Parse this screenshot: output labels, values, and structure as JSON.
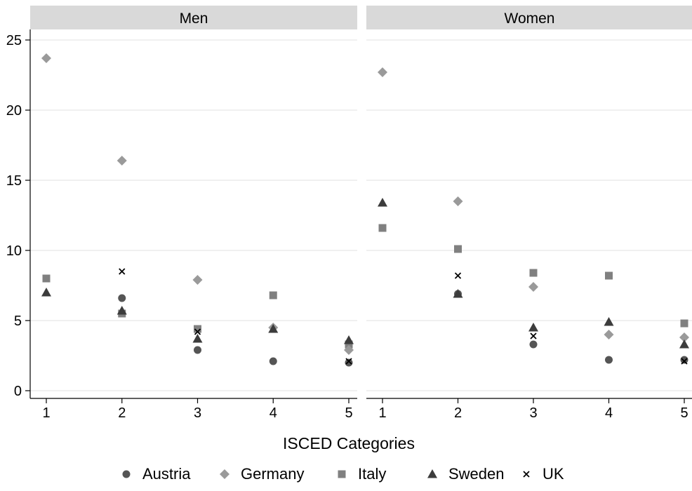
{
  "chart_data": {
    "type": "scatter",
    "xlabel": "ISCED Categories",
    "x_ticks": [
      1,
      2,
      3,
      4,
      5
    ],
    "x_range": [
      1,
      5
    ],
    "y_ticks": [
      0,
      5,
      10,
      15,
      20,
      25
    ],
    "ylim": [
      0,
      25
    ],
    "grid": true,
    "legend_position": "bottom",
    "panels": [
      {
        "title": "Men",
        "series": [
          {
            "name": "Austria",
            "values": [
              null,
              6.6,
              2.9,
              2.1,
              2.0
            ]
          },
          {
            "name": "Germany",
            "values": [
              23.7,
              16.4,
              7.9,
              4.5,
              2.9
            ]
          },
          {
            "name": "Italy",
            "values": [
              8.0,
              5.5,
              4.4,
              6.8,
              3.3
            ]
          },
          {
            "name": "Sweden",
            "values": [
              7.0,
              5.7,
              3.7,
              4.4,
              3.6
            ]
          },
          {
            "name": "UK",
            "values": [
              null,
              8.5,
              4.2,
              null,
              2.1
            ]
          }
        ]
      },
      {
        "title": "Women",
        "series": [
          {
            "name": "Austria",
            "values": [
              null,
              6.9,
              3.3,
              2.2,
              2.2
            ]
          },
          {
            "name": "Germany",
            "values": [
              22.7,
              13.5,
              7.4,
              4.0,
              3.8
            ]
          },
          {
            "name": "Italy",
            "values": [
              11.6,
              10.1,
              8.4,
              8.2,
              4.8
            ]
          },
          {
            "name": "Sweden",
            "values": [
              13.4,
              6.9,
              4.5,
              4.9,
              3.3
            ]
          },
          {
            "name": "UK",
            "values": [
              null,
              8.2,
              3.9,
              null,
              2.1
            ]
          }
        ]
      }
    ],
    "legend": [
      {
        "name": "Austria",
        "marker": "circle",
        "color": "#555555"
      },
      {
        "name": "Germany",
        "marker": "diamond",
        "color": "#9a9a9a"
      },
      {
        "name": "Italy",
        "marker": "square",
        "color": "#808080"
      },
      {
        "name": "Sweden",
        "marker": "triangle",
        "color": "#3c3c3c"
      },
      {
        "name": "UK",
        "marker": "x",
        "color": "#000000"
      }
    ]
  }
}
